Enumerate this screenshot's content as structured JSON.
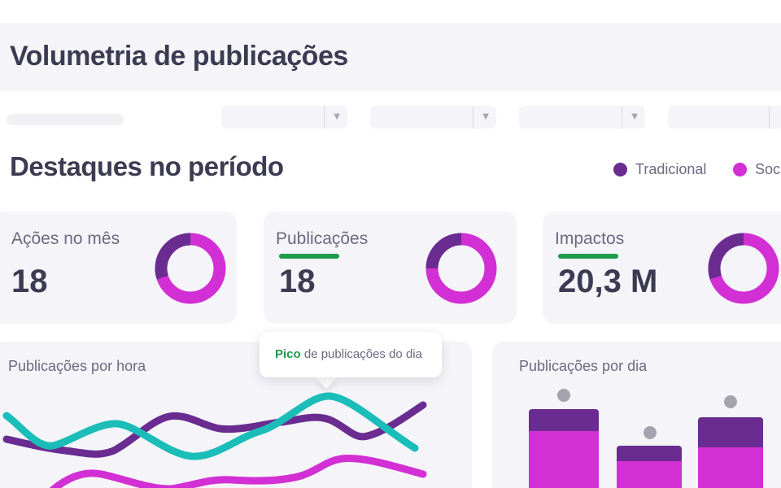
{
  "page": {
    "title": "Volumetria de publicações"
  },
  "filters": {
    "dropdown_count": 4
  },
  "highlights": {
    "title": "Destaques no período",
    "legend": [
      {
        "label": "Tradicional",
        "color": "#6a2c91"
      },
      {
        "label": "Soci",
        "color": "#d22fd4"
      }
    ]
  },
  "kpis": [
    {
      "label": "Ações no mês",
      "value": "18",
      "underlined": false,
      "share_tradicional": 0.3
    },
    {
      "label": "Publicações",
      "value": "18",
      "underlined": true,
      "share_tradicional": 0.25
    },
    {
      "label": "Impactos",
      "value": "20,3 M",
      "underlined": true,
      "share_tradicional": 0.3
    }
  ],
  "hourly": {
    "title": "Publicações por hora",
    "tooltip": {
      "strong": "Pico",
      "text": " de publicações do dia"
    }
  },
  "daily": {
    "title": "Publicações por dia"
  },
  "colors": {
    "tradicional": "#6a2c91",
    "social": "#d22fd4",
    "teal": "#1bbdb9",
    "accent_green": "#1e9a4a",
    "marker_gray": "#a3a3ad"
  }
}
